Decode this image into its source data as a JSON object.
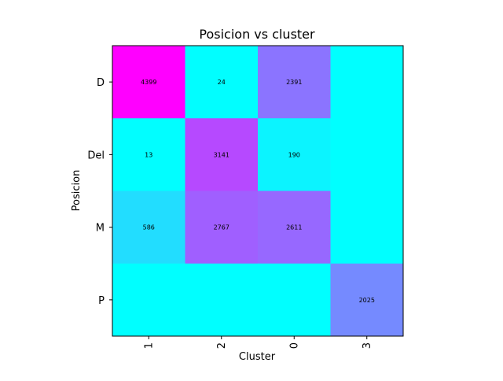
{
  "chart_data": {
    "type": "heatmap",
    "title": "Posicion vs cluster",
    "xlabel": "Cluster",
    "ylabel": "Posicion",
    "x_categories": [
      "1",
      "2",
      "0",
      "3"
    ],
    "y_categories": [
      "D",
      "Del",
      "M",
      "P"
    ],
    "values": [
      [
        4399,
        24,
        2391,
        0
      ],
      [
        13,
        3141,
        190,
        0
      ],
      [
        586,
        2767,
        2611,
        0
      ],
      [
        0,
        0,
        0,
        2025
      ]
    ],
    "annotations": [
      [
        "4399",
        "24",
        "2391",
        ""
      ],
      [
        "13",
        "3141",
        "190",
        ""
      ],
      [
        "586",
        "2767",
        "2611",
        ""
      ],
      [
        "",
        "",
        "",
        "2025"
      ]
    ],
    "colormap": "cool",
    "color_range": [
      0,
      4399
    ],
    "cmap_low": "#00ffff",
    "cmap_high": "#ff00ff",
    "x_tick_rotation": 90,
    "colorbar": false,
    "grid": false
  }
}
